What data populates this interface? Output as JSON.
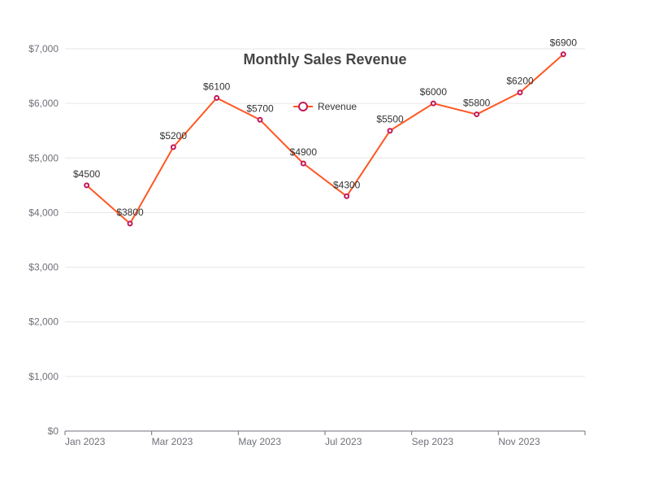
{
  "chart_data": {
    "type": "line",
    "title": "Monthly Sales Revenue",
    "x": [
      "Jan 2023",
      "Feb 2023",
      "Mar 2023",
      "Apr 2023",
      "May 2023",
      "Jun 2023",
      "Jul 2023",
      "Aug 2023",
      "Sep 2023",
      "Oct 2023",
      "Nov 2023",
      "Dec 2023"
    ],
    "x_tick_labels": [
      "Jan 2023",
      "Mar 2023",
      "May 2023",
      "Jul 2023",
      "Sep 2023",
      "Nov 2023"
    ],
    "series": [
      {
        "name": "Revenue",
        "values": [
          4500,
          3800,
          5200,
          6100,
          5700,
          4900,
          4300,
          5500,
          6000,
          5800,
          6200,
          6900
        ],
        "data_labels": [
          "$4500",
          "$3800",
          "$5200",
          "$6100",
          "$5700",
          "$4900",
          "$4300",
          "$5500",
          "$6000",
          "$5800",
          "$6200",
          "$6900"
        ],
        "line_color": "#ff5722",
        "marker_color": "#c2185b"
      }
    ],
    "ylim": [
      0,
      7000
    ],
    "y_ticks": [
      0,
      1000,
      2000,
      3000,
      4000,
      5000,
      6000,
      7000
    ],
    "y_tick_labels": [
      "$0",
      "$1,000",
      "$2,000",
      "$3,000",
      "$4,000",
      "$5,000",
      "$6,000",
      "$7,000"
    ],
    "xlabel": "",
    "ylabel": "",
    "grid": true,
    "legend_position": "top-center"
  }
}
